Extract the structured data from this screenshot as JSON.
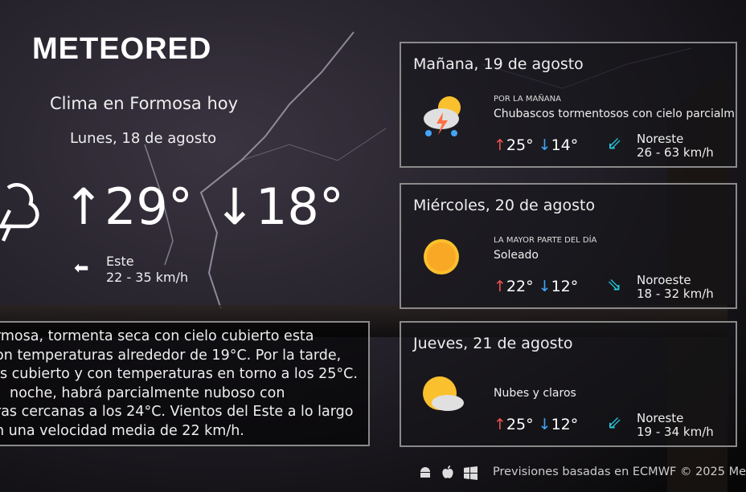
{
  "brand": {
    "logo": "METEORED"
  },
  "today": {
    "title": "Clima en Formosa hoy",
    "date": "Lunes, 18 de agosto",
    "max": "29°",
    "min": "18°",
    "icon": "thunderstorm-cloud-icon",
    "wind_dir": "Este",
    "wind_speed": "22 - 35 km/h",
    "description": [
      "rmosa, tormenta seca con cielo cubierto esta",
      "on temperaturas alrededor de 19°C. Por la tarde,",
      "s cubierto y con temperaturas en torno a los 25°C.",
      "noche, habrá parcialmente nuboso  con",
      "ras cercanas a los 24°C. Vientos del Este a lo largo",
      "n una velocidad media de 22 km/h."
    ]
  },
  "forecast": [
    {
      "title": "Mañana, 19 de agosto",
      "period": "POR LA MAÑANA",
      "desc": "Chubascos tormentosos con cielo parcialm",
      "max": "25°",
      "min": "14°",
      "wind_dir": "Noreste",
      "wind_speed": "26 - 63 km/h",
      "icon": "storm-sun-rain-icon"
    },
    {
      "title": "Miércoles, 20 de agosto",
      "period": "LA MAYOR PARTE DEL DÍA",
      "desc": "Soleado",
      "max": "22°",
      "min": "12°",
      "wind_dir": "Noroeste",
      "wind_speed": "18 - 32 km/h",
      "icon": "sun-icon"
    },
    {
      "title": "Jueves, 21 de agosto",
      "period": "",
      "desc": "Nubes y claros",
      "max": "25°",
      "min": "12°",
      "wind_dir": "Noreste",
      "wind_speed": "19 - 34 km/h",
      "icon": "sun-cloud-icon"
    }
  ],
  "footer": {
    "text": "Previsiones basadas en ECMWF © 2025 Me",
    "apps": [
      "android-icon",
      "apple-icon",
      "windows-icon"
    ]
  },
  "colors": {
    "up": "#ef5350",
    "down": "#42a5f5",
    "wind": "#26c6da"
  }
}
